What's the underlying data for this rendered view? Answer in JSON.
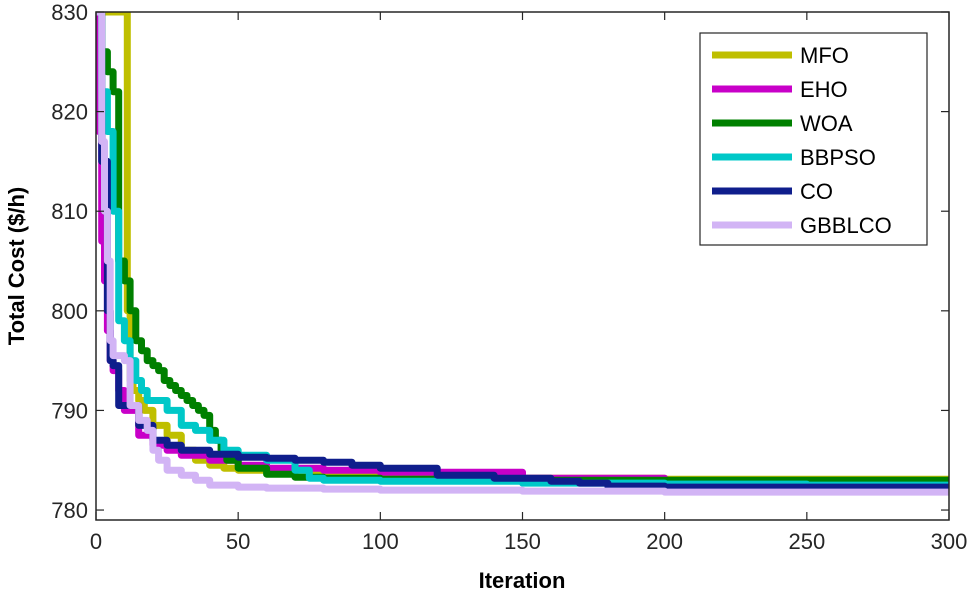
{
  "chart_data": {
    "type": "line",
    "title": "",
    "xlabel": "Iteration",
    "ylabel": "Total Cost ($/h)",
    "xlim": [
      0,
      300
    ],
    "ylim": [
      779,
      830
    ],
    "xticks": [
      0,
      50,
      100,
      150,
      200,
      250,
      300
    ],
    "yticks": [
      780,
      790,
      800,
      810,
      820,
      830
    ],
    "grid": false,
    "legend_position": "top-right",
    "series": [
      {
        "name": "MFO",
        "color": "#bfbf00",
        "x": [
          0,
          8,
          10,
          11,
          12,
          13,
          15,
          17,
          20,
          25,
          30,
          35,
          40,
          45,
          50,
          60,
          70,
          80,
          100,
          150,
          200,
          250,
          300
        ],
        "y": [
          830,
          830,
          830,
          800,
          793,
          792,
          791,
          790,
          788.5,
          787.5,
          786,
          785,
          784.5,
          784.2,
          784,
          783.8,
          783.6,
          783.4,
          783.3,
          783.2,
          783.1,
          783.1,
          783.1
        ]
      },
      {
        "name": "EHO",
        "color": "#c800c8",
        "x": [
          0,
          1,
          2,
          3,
          4,
          5,
          6,
          8,
          10,
          15,
          20,
          25,
          30,
          40,
          50,
          60,
          80,
          100,
          150,
          200,
          250,
          300
        ],
        "y": [
          830,
          818,
          807,
          803,
          798,
          795,
          794,
          792,
          790,
          787.5,
          786.5,
          786,
          785.5,
          785,
          784.5,
          784.2,
          784,
          783.8,
          783.2,
          782.8,
          782.8,
          782.8
        ]
      },
      {
        "name": "WOA",
        "color": "#008000",
        "x": [
          0,
          2,
          4,
          6,
          8,
          10,
          12,
          14,
          16,
          18,
          20,
          22,
          24,
          26,
          28,
          30,
          32,
          34,
          36,
          38,
          40,
          42,
          44,
          46,
          50,
          60,
          70,
          80,
          100,
          150,
          200,
          250,
          300
        ],
        "y": [
          830,
          826,
          824,
          822,
          805,
          803,
          800,
          797,
          796,
          795,
          794.5,
          794,
          793,
          792.5,
          792,
          791.5,
          791,
          790.5,
          790,
          789.5,
          788,
          787,
          786,
          785,
          784.2,
          783.6,
          783.3,
          783.2,
          783.1,
          783,
          783,
          783,
          783
        ]
      },
      {
        "name": "BBPSO",
        "color": "#00c8c8",
        "x": [
          0,
          2,
          4,
          6,
          8,
          10,
          12,
          14,
          16,
          18,
          20,
          25,
          30,
          35,
          40,
          45,
          50,
          60,
          70,
          75,
          80,
          100,
          150,
          200,
          250,
          300
        ],
        "y": [
          830,
          822,
          818,
          810,
          799,
          797,
          795,
          793,
          792,
          791,
          791,
          790,
          788.5,
          788,
          787,
          786,
          785.5,
          785,
          784,
          783.2,
          783,
          782.9,
          782.7,
          782.6,
          782.5,
          782.5
        ]
      },
      {
        "name": "CO",
        "color": "#0f1e8c",
        "x": [
          0,
          2,
          4,
          5,
          6,
          7,
          8,
          10,
          15,
          20,
          25,
          30,
          40,
          50,
          60,
          70,
          80,
          90,
          100,
          120,
          140,
          160,
          170,
          180,
          200,
          250,
          300
        ],
        "y": [
          830,
          815,
          800,
          795,
          794.5,
          794.5,
          790.5,
          790.5,
          788.5,
          787,
          786.5,
          786,
          785.6,
          785.3,
          785.2,
          785,
          784.8,
          784.5,
          784.2,
          783.5,
          783.2,
          782.9,
          782.7,
          782.4,
          782.3,
          782.3,
          782.3
        ]
      },
      {
        "name": "GBBLCO",
        "color": "#d2b4f5",
        "x": [
          0,
          2,
          3,
          4,
          5,
          6,
          8,
          10,
          12,
          15,
          18,
          20,
          22,
          25,
          30,
          35,
          40,
          50,
          60,
          80,
          100,
          150,
          200,
          250,
          300
        ],
        "y": [
          830,
          817,
          810,
          805,
          797,
          795.5,
          795.5,
          795,
          790.5,
          789,
          788,
          786,
          785,
          784,
          783.5,
          783,
          782.5,
          782.3,
          782.2,
          782.1,
          782,
          781.9,
          781.8,
          781.8,
          781.8
        ]
      }
    ]
  }
}
